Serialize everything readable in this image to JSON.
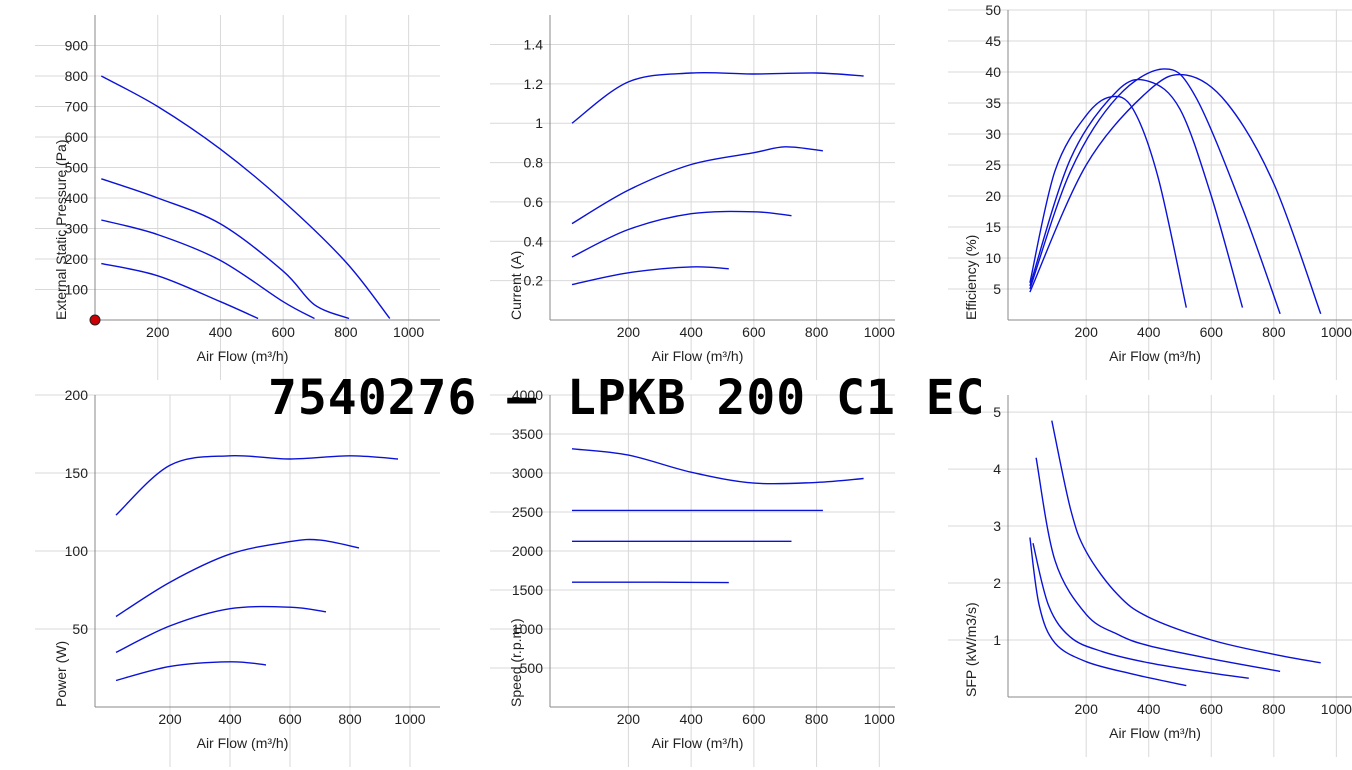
{
  "title": "7540276 – LPKB 200 C1 EC",
  "colors": {
    "curve": "#0b12d8",
    "operating_point": "#cc0000",
    "grid": "#d9d9d9"
  },
  "chart_data": [
    {
      "id": "pressure",
      "type": "line",
      "xlabel": "Air Flow (m³/h)",
      "ylabel": "External Static Pressure (Pa)",
      "xlim": [
        0,
        1100
      ],
      "ylim": [
        0,
        1000
      ],
      "xticks": [
        200,
        400,
        600,
        800,
        1000
      ],
      "yticks": [
        100,
        200,
        300,
        400,
        500,
        600,
        700,
        800,
        900
      ],
      "grid": true,
      "marker": {
        "x": 0,
        "y": 0
      },
      "series": [
        {
          "points": [
            [
              20,
              800
            ],
            [
              200,
              700
            ],
            [
              400,
              560
            ],
            [
              600,
              390
            ],
            [
              800,
              190
            ],
            [
              940,
              5
            ]
          ]
        },
        {
          "points": [
            [
              20,
              463
            ],
            [
              200,
              400
            ],
            [
              400,
              315
            ],
            [
              600,
              160
            ],
            [
              700,
              50
            ],
            [
              810,
              5
            ]
          ]
        },
        {
          "points": [
            [
              20,
              328
            ],
            [
              200,
              280
            ],
            [
              400,
              195
            ],
            [
              600,
              60
            ],
            [
              700,
              5
            ]
          ]
        },
        {
          "points": [
            [
              20,
              185
            ],
            [
              200,
              145
            ],
            [
              400,
              60
            ],
            [
              520,
              5
            ]
          ]
        }
      ]
    },
    {
      "id": "current",
      "type": "line",
      "xlabel": "Air Flow (m³/h)",
      "ylabel": "Current (A)",
      "xlim": [
        -50,
        1050
      ],
      "ylim": [
        0,
        1.55
      ],
      "xticks": [
        200,
        400,
        600,
        800,
        1000
      ],
      "yticks": [
        0.2,
        0.4,
        0.6,
        0.8,
        1,
        1.2,
        1.4
      ],
      "grid": true,
      "series": [
        {
          "points": [
            [
              20,
              1.0
            ],
            [
              200,
              1.21
            ],
            [
              400,
              1.255
            ],
            [
              600,
              1.25
            ],
            [
              800,
              1.255
            ],
            [
              950,
              1.24
            ]
          ]
        },
        {
          "points": [
            [
              20,
              0.49
            ],
            [
              200,
              0.66
            ],
            [
              400,
              0.79
            ],
            [
              600,
              0.85
            ],
            [
              700,
              0.88
            ],
            [
              820,
              0.86
            ]
          ]
        },
        {
          "points": [
            [
              20,
              0.32
            ],
            [
              200,
              0.46
            ],
            [
              400,
              0.54
            ],
            [
              600,
              0.55
            ],
            [
              720,
              0.53
            ]
          ]
        },
        {
          "points": [
            [
              20,
              0.18
            ],
            [
              200,
              0.24
            ],
            [
              400,
              0.27
            ],
            [
              520,
              0.26
            ]
          ]
        }
      ]
    },
    {
      "id": "efficiency",
      "type": "line",
      "xlabel": "Air Flow (m³/h)",
      "ylabel": "Efficiency (%)",
      "xlim": [
        -50,
        1050
      ],
      "ylim": [
        0,
        50
      ],
      "xticks": [
        200,
        400,
        600,
        800,
        1000
      ],
      "yticks": [
        5,
        10,
        15,
        20,
        25,
        30,
        35,
        40,
        45,
        50
      ],
      "grid": true,
      "series": [
        {
          "points": [
            [
              20,
              6
            ],
            [
              100,
              24
            ],
            [
              200,
              33
            ],
            [
              280,
              36
            ],
            [
              350,
              34
            ],
            [
              430,
              23
            ],
            [
              520,
              2
            ]
          ]
        },
        {
          "points": [
            [
              20,
              5.5
            ],
            [
              150,
              26
            ],
            [
              300,
              37
            ],
            [
              400,
              38.5
            ],
            [
              500,
              34
            ],
            [
              600,
              20
            ],
            [
              700,
              2
            ]
          ]
        },
        {
          "points": [
            [
              20,
              5
            ],
            [
              150,
              24
            ],
            [
              300,
              36
            ],
            [
              450,
              40.5
            ],
            [
              550,
              36
            ],
            [
              700,
              18
            ],
            [
              820,
              1
            ]
          ]
        },
        {
          "points": [
            [
              20,
              4.5
            ],
            [
              200,
              25
            ],
            [
              400,
              37
            ],
            [
              520,
              39.5
            ],
            [
              650,
              35
            ],
            [
              800,
              22
            ],
            [
              950,
              1
            ]
          ]
        }
      ]
    },
    {
      "id": "power",
      "type": "line",
      "xlabel": "Air Flow (m³/h)",
      "ylabel": "Power (W)",
      "xlim": [
        -50,
        1100
      ],
      "ylim": [
        0,
        200
      ],
      "xticks": [
        200,
        400,
        600,
        800,
        1000
      ],
      "yticks": [
        50,
        100,
        150,
        200
      ],
      "grid": true,
      "series": [
        {
          "points": [
            [
              20,
              123
            ],
            [
              200,
              155
            ],
            [
              400,
              161
            ],
            [
              600,
              159
            ],
            [
              800,
              161
            ],
            [
              960,
              159
            ]
          ]
        },
        {
          "points": [
            [
              20,
              58
            ],
            [
              200,
              80
            ],
            [
              400,
              98
            ],
            [
              600,
              106
            ],
            [
              700,
              107
            ],
            [
              830,
              102
            ]
          ]
        },
        {
          "points": [
            [
              20,
              35
            ],
            [
              200,
              52
            ],
            [
              400,
              63
            ],
            [
              600,
              64
            ],
            [
              720,
              61
            ]
          ]
        },
        {
          "points": [
            [
              20,
              17
            ],
            [
              200,
              26
            ],
            [
              400,
              29
            ],
            [
              520,
              27
            ]
          ]
        }
      ]
    },
    {
      "id": "speed",
      "type": "line",
      "xlabel": "Air Flow (m³/h)",
      "ylabel": "Speed (r.p.m.)",
      "xlim": [
        -50,
        1050
      ],
      "ylim": [
        0,
        4000
      ],
      "xticks": [
        200,
        400,
        600,
        800,
        1000
      ],
      "yticks": [
        500,
        1000,
        1500,
        2000,
        2500,
        3000,
        3500,
        4000
      ],
      "grid": true,
      "series": [
        {
          "points": [
            [
              20,
              3310
            ],
            [
              200,
              3230
            ],
            [
              400,
              3010
            ],
            [
              600,
              2870
            ],
            [
              800,
              2880
            ],
            [
              950,
              2930
            ]
          ]
        },
        {
          "points": [
            [
              20,
              2520
            ],
            [
              400,
              2520
            ],
            [
              820,
              2520
            ]
          ]
        },
        {
          "points": [
            [
              20,
              2125
            ],
            [
              400,
              2125
            ],
            [
              720,
              2125
            ]
          ]
        },
        {
          "points": [
            [
              20,
              1600
            ],
            [
              300,
              1600
            ],
            [
              520,
              1595
            ]
          ]
        }
      ]
    },
    {
      "id": "sfp",
      "type": "line",
      "xlabel": "Air Flow (m³/h)",
      "ylabel": "SFP (kW/m3/s)",
      "xlim": [
        -50,
        1050
      ],
      "ylim": [
        0,
        5.3
      ],
      "xticks": [
        200,
        400,
        600,
        800,
        1000
      ],
      "yticks": [
        1,
        2,
        3,
        4,
        5
      ],
      "grid": true,
      "series": [
        {
          "points": [
            [
              90,
              4.85
            ],
            [
              150,
              3.3
            ],
            [
              200,
              2.55
            ],
            [
              300,
              1.8
            ],
            [
              400,
              1.4
            ],
            [
              600,
              1.0
            ],
            [
              800,
              0.75
            ],
            [
              950,
              0.6
            ]
          ]
        },
        {
          "points": [
            [
              40,
              4.2
            ],
            [
              100,
              2.4
            ],
            [
              200,
              1.45
            ],
            [
              300,
              1.1
            ],
            [
              400,
              0.9
            ],
            [
              600,
              0.67
            ],
            [
              820,
              0.45
            ]
          ]
        },
        {
          "points": [
            [
              30,
              2.7
            ],
            [
              80,
              1.6
            ],
            [
              150,
              1.05
            ],
            [
              250,
              0.8
            ],
            [
              400,
              0.6
            ],
            [
              600,
              0.42
            ],
            [
              720,
              0.33
            ]
          ]
        },
        {
          "points": [
            [
              20,
              2.8
            ],
            [
              50,
              1.6
            ],
            [
              100,
              0.95
            ],
            [
              200,
              0.62
            ],
            [
              350,
              0.4
            ],
            [
              520,
              0.2
            ]
          ]
        }
      ]
    }
  ]
}
